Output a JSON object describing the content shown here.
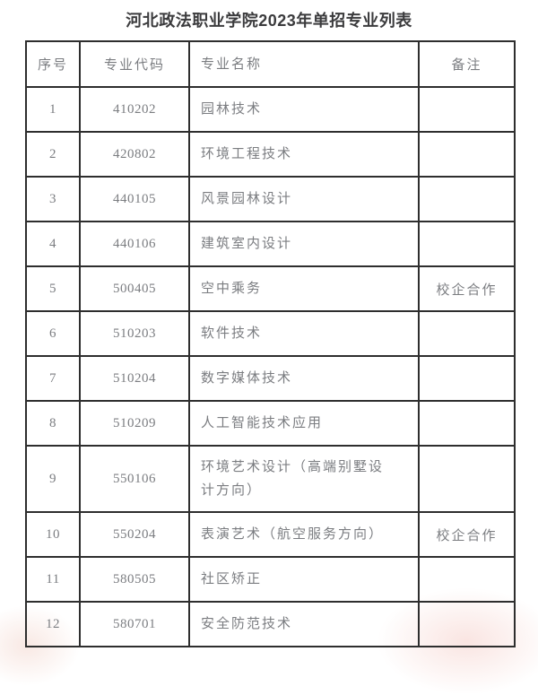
{
  "title": "河北政法职业学院2023年单招专业列表",
  "theme": {
    "border_color": "#2e2e2e",
    "title_color": "#3b3b3d",
    "body_text_color": "#7b7d81",
    "watermark_tint": "#f6d3ce"
  },
  "table": {
    "columns": [
      {
        "key": "index",
        "label": "序号"
      },
      {
        "key": "code",
        "label": "专业代码"
      },
      {
        "key": "name",
        "label": "专业名称"
      },
      {
        "key": "remark",
        "label": "备注"
      }
    ],
    "rows": [
      {
        "index": "1",
        "code": "410202",
        "name": "园林技术",
        "remark": ""
      },
      {
        "index": "2",
        "code": "420802",
        "name": "环境工程技术",
        "remark": ""
      },
      {
        "index": "3",
        "code": "440105",
        "name": "风景园林设计",
        "remark": ""
      },
      {
        "index": "4",
        "code": "440106",
        "name": "建筑室内设计",
        "remark": ""
      },
      {
        "index": "5",
        "code": "500405",
        "name": "空中乘务",
        "remark": "校企合作"
      },
      {
        "index": "6",
        "code": "510203",
        "name": "软件技术",
        "remark": ""
      },
      {
        "index": "7",
        "code": "510204",
        "name": "数字媒体技术",
        "remark": ""
      },
      {
        "index": "8",
        "code": "510209",
        "name": "人工智能技术应用",
        "remark": ""
      },
      {
        "index": "9",
        "code": "550106",
        "name": "环境艺术设计（高端别墅设\n计方向）",
        "remark": "",
        "tall": true
      },
      {
        "index": "10",
        "code": "550204",
        "name": "表演艺术（航空服务方向）",
        "remark": "校企合作"
      },
      {
        "index": "11",
        "code": "580505",
        "name": "社区矫正",
        "remark": ""
      },
      {
        "index": "12",
        "code": "580701",
        "name": "安全防范技术",
        "remark": ""
      }
    ]
  }
}
